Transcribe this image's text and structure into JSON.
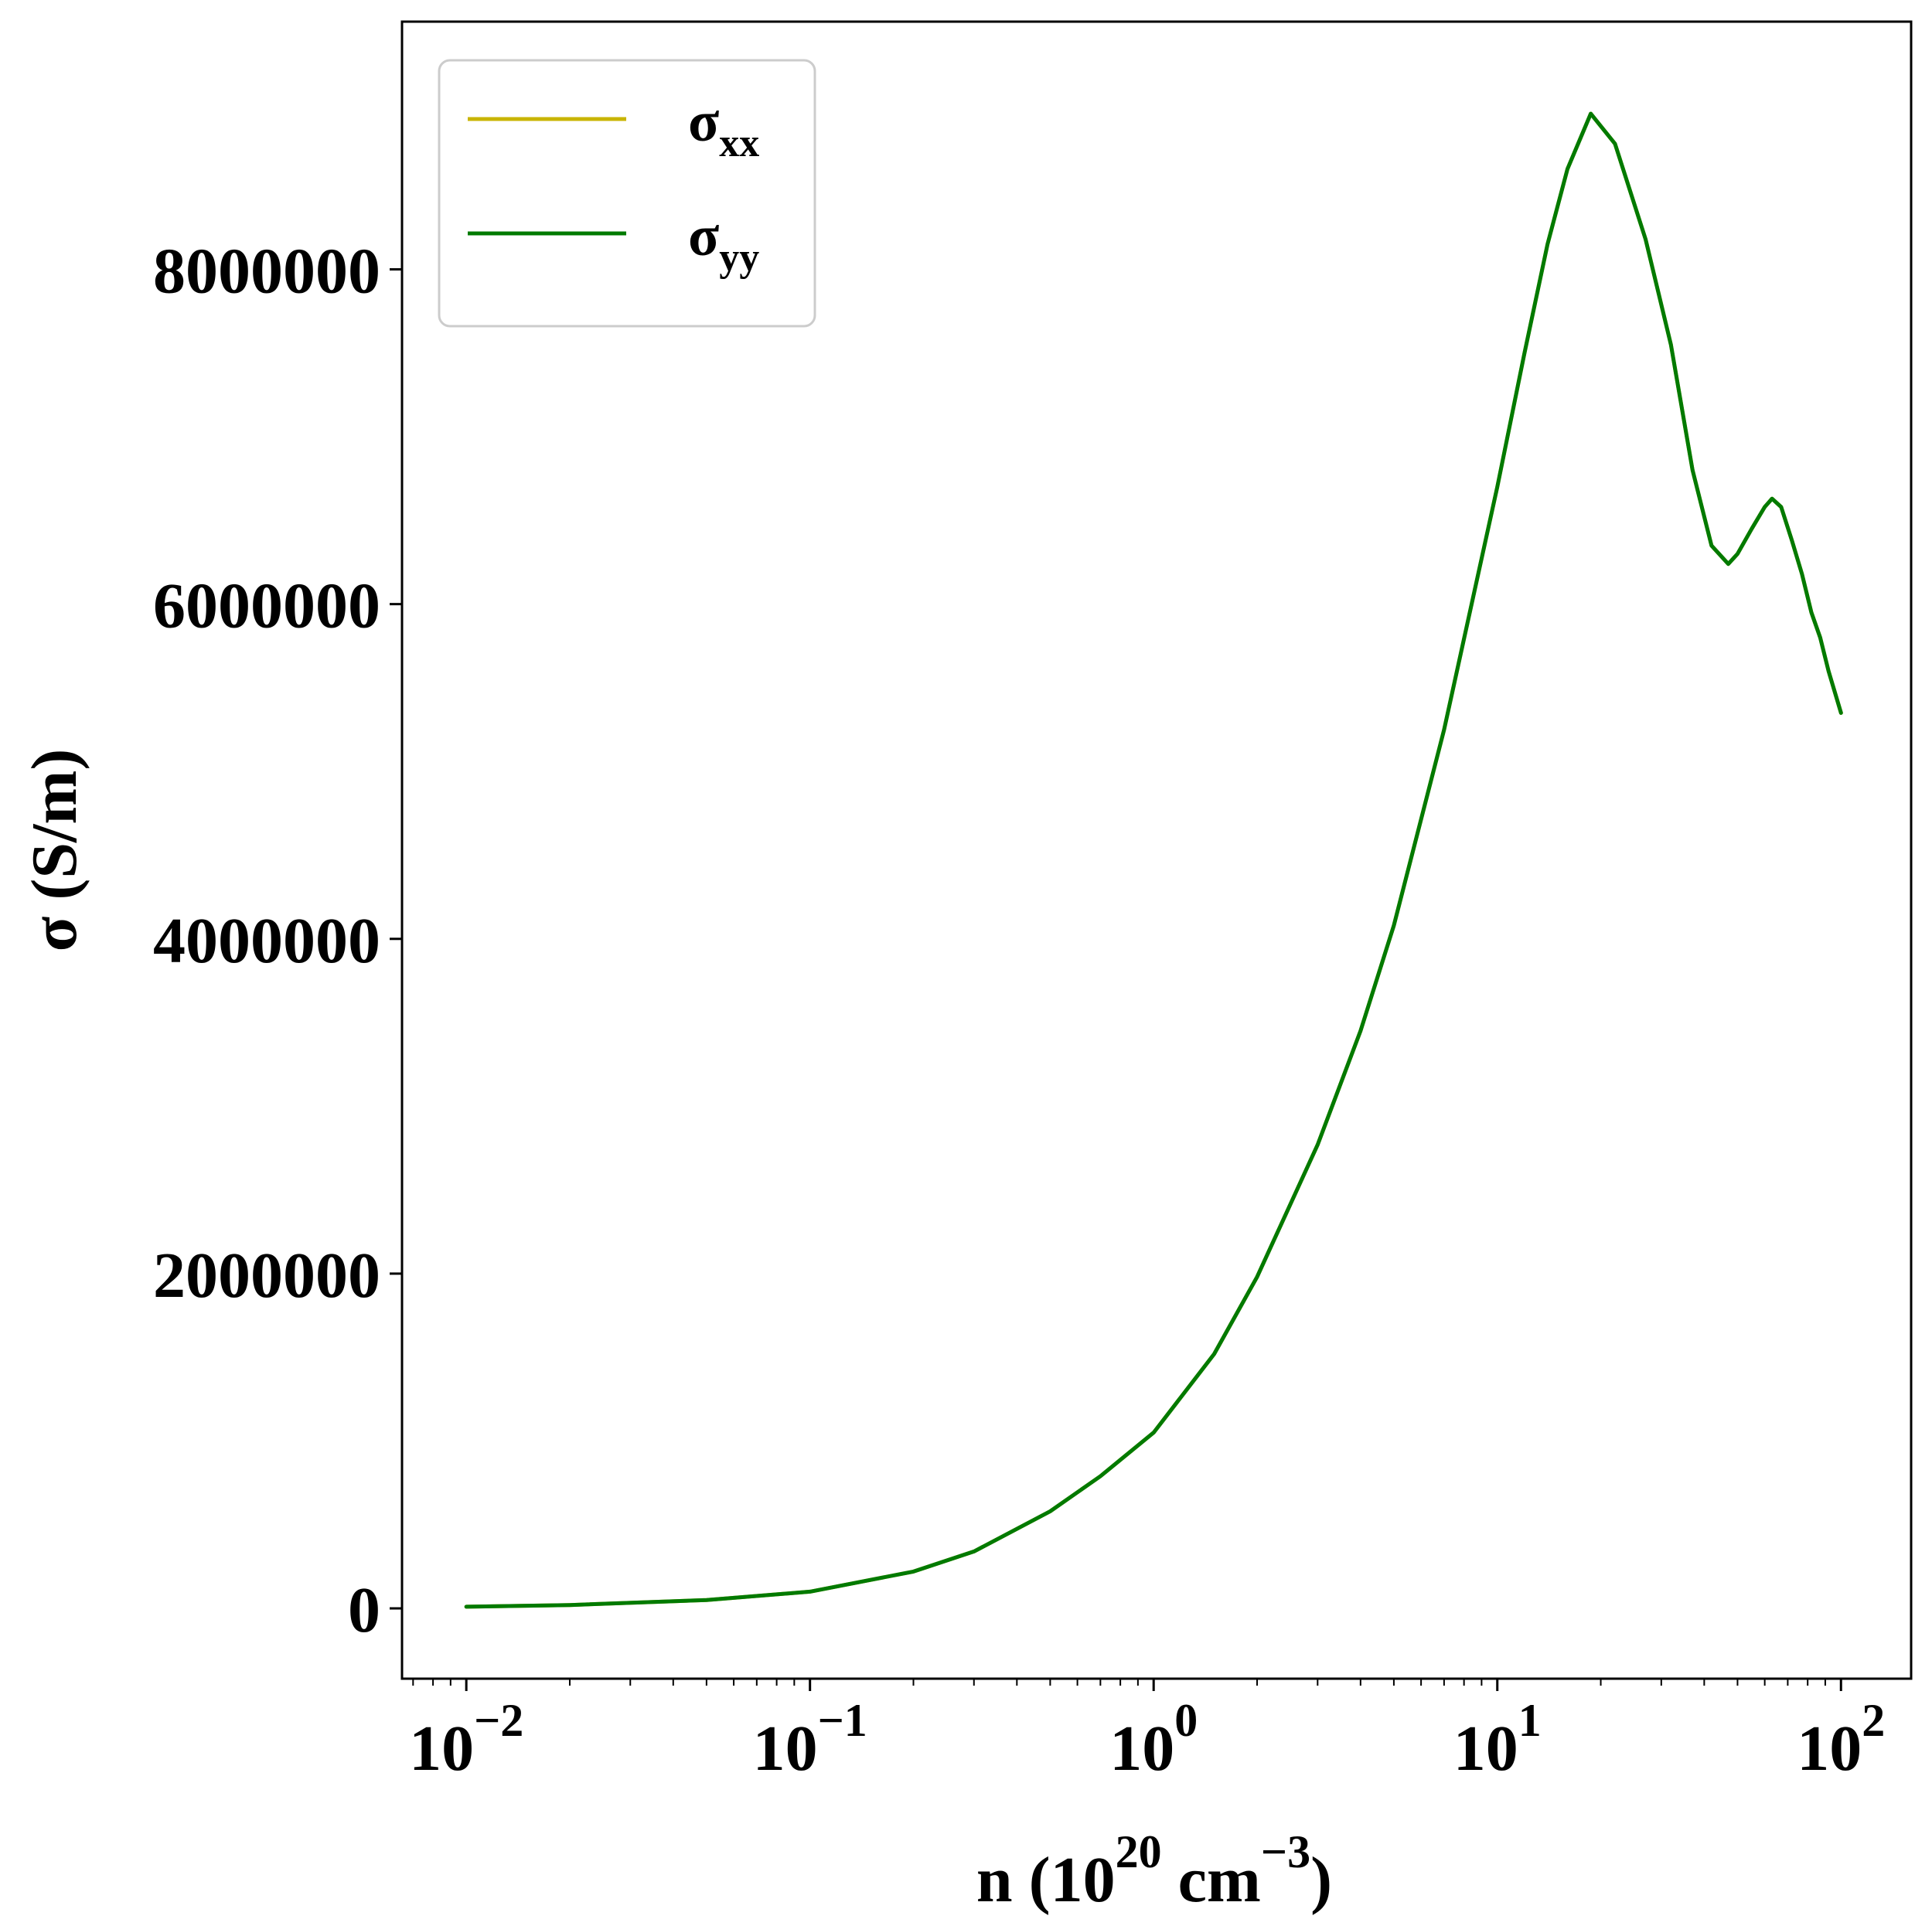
{
  "chart_data": {
    "type": "line",
    "xlabel": {
      "base": "n (10",
      "exp1": "20",
      "mid": " cm",
      "exp2": "−3",
      "end": ")"
    },
    "ylabel": "σ (S/m)",
    "x_scale": "log",
    "xlim": [
      0.0065,
      160
    ],
    "ylim": [
      -420000,
      9480000
    ],
    "x_ticks": [
      {
        "value": 0.01,
        "base": "10",
        "exp": "−2"
      },
      {
        "value": 0.1,
        "base": "10",
        "exp": "−1"
      },
      {
        "value": 1,
        "base": "10",
        "exp": "0"
      },
      {
        "value": 10,
        "base": "10",
        "exp": "1"
      },
      {
        "value": 100,
        "base": "10",
        "exp": "2"
      }
    ],
    "y_ticks": [
      {
        "value": 0,
        "label": "0"
      },
      {
        "value": 2000000,
        "label": "2000000"
      },
      {
        "value": 4000000,
        "label": "4000000"
      },
      {
        "value": 6000000,
        "label": "6000000"
      },
      {
        "value": 8000000,
        "label": "8000000"
      }
    ],
    "grid": false,
    "legend_position": "top-left",
    "series": [
      {
        "name": "σ",
        "sub": "xx",
        "color": "#c8b400",
        "x": [
          0.01,
          0.02,
          0.05,
          0.1,
          0.2,
          0.3,
          0.5,
          0.7,
          1.0,
          1.5,
          2.0,
          3.0,
          4.0,
          5.0,
          7.0,
          10.0,
          12.0,
          14.0,
          16.0,
          18.7,
          22.0,
          27.0,
          32.0,
          37.0,
          42.0,
          47.0,
          50.0,
          55.0,
          60.0,
          63.0,
          67.0,
          72.0,
          77.0,
          82.0,
          87.0,
          92.0,
          100.0
        ],
        "y": [
          10000,
          20000,
          50000,
          100000,
          220000,
          340000,
          580000,
          790000,
          1050000,
          1520000,
          1980000,
          2770000,
          3450000,
          4080000,
          5250000,
          6700000,
          7500000,
          8150000,
          8600000,
          8930000,
          8750000,
          8180000,
          7550000,
          6800000,
          6350000,
          6240000,
          6300000,
          6450000,
          6580000,
          6630000,
          6580000,
          6380000,
          6180000,
          5950000,
          5800000,
          5600000,
          5350000
        ]
      },
      {
        "name": "σ",
        "sub": "yy",
        "color": "#007a00",
        "x": [
          0.01,
          0.02,
          0.05,
          0.1,
          0.2,
          0.3,
          0.5,
          0.7,
          1.0,
          1.5,
          2.0,
          3.0,
          4.0,
          5.0,
          7.0,
          10.0,
          12.0,
          14.0,
          16.0,
          18.7,
          22.0,
          27.0,
          32.0,
          37.0,
          42.0,
          47.0,
          50.0,
          55.0,
          60.0,
          63.0,
          67.0,
          72.0,
          77.0,
          82.0,
          87.0,
          92.0,
          100.0
        ],
        "y": [
          10000,
          20000,
          50000,
          100000,
          220000,
          340000,
          580000,
          790000,
          1050000,
          1520000,
          1980000,
          2770000,
          3450000,
          4080000,
          5250000,
          6700000,
          7500000,
          8150000,
          8600000,
          8930000,
          8750000,
          8180000,
          7550000,
          6800000,
          6350000,
          6240000,
          6300000,
          6450000,
          6580000,
          6630000,
          6580000,
          6380000,
          6180000,
          5950000,
          5800000,
          5600000,
          5350000
        ]
      }
    ]
  }
}
